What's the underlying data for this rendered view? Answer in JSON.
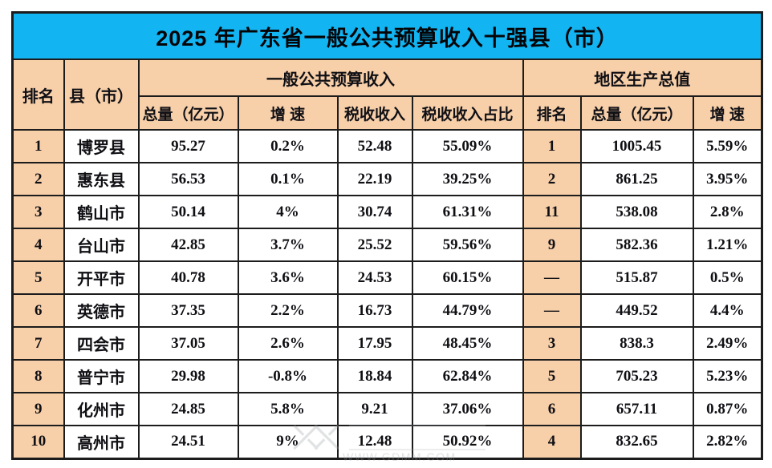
{
  "title": "2025 年广东省一般公共预算收入十强县（市）",
  "header": {
    "rank": "排名",
    "county": "县（市）",
    "group_revenue": "一般公共预算收入",
    "group_gdp": "地区生产总值",
    "revenue_cols": [
      "总量（亿元）",
      "增  速",
      "税收收入",
      "税收收入占比"
    ],
    "gdp_cols": [
      "排名",
      "总量（亿元）",
      "增  速"
    ]
  },
  "rows": [
    [
      "1",
      "博罗县",
      "95.27",
      "0.2%",
      "52.48",
      "55.09%",
      "1",
      "1005.45",
      "5.59%"
    ],
    [
      "2",
      "惠东县",
      "56.53",
      "0.1%",
      "22.19",
      "39.25%",
      "2",
      "861.25",
      "3.95%"
    ],
    [
      "3",
      "鹤山市",
      "50.14",
      "4%",
      "30.74",
      "61.31%",
      "11",
      "538.08",
      "2.8%"
    ],
    [
      "4",
      "台山市",
      "42.85",
      "3.7%",
      "25.52",
      "59.56%",
      "9",
      "582.36",
      "1.21%"
    ],
    [
      "5",
      "开平市",
      "40.78",
      "3.6%",
      "24.53",
      "60.15%",
      "—",
      "515.87",
      "0.5%"
    ],
    [
      "6",
      "英德市",
      "37.35",
      "2.2%",
      "16.73",
      "44.79%",
      "—",
      "449.52",
      "4.4%"
    ],
    [
      "7",
      "四会市",
      "37.05",
      "2.6%",
      "17.95",
      "48.45%",
      "3",
      "838.3",
      "2.49%"
    ],
    [
      "8",
      "普宁市",
      "29.98",
      "-0.8%",
      "18.84",
      "62.84%",
      "5",
      "705.23",
      "5.23%"
    ],
    [
      "9",
      "化州市",
      "24.85",
      "5.8%",
      "9.21",
      "37.06%",
      "6",
      "657.11",
      "0.87%"
    ],
    [
      "10",
      "高州市",
      "24.51",
      "9%",
      "12.48",
      "50.92%",
      "4",
      "832.65",
      "2.82%"
    ]
  ],
  "watermark": {
    "url": "WWW.GDMM.COM"
  },
  "colors": {
    "title_bg": "#12b5f2",
    "header_bg": "#f7cfa9",
    "border": "#1c1c1c",
    "cell_bg": "#ffffff"
  },
  "chart_data": {
    "type": "table",
    "title": "2025 年广东省一般公共预算收入十强县（市）",
    "column_groups": [
      {
        "label": "",
        "columns": [
          "排名",
          "县（市）"
        ]
      },
      {
        "label": "一般公共预算收入",
        "columns": [
          "总量（亿元）",
          "增  速",
          "税收收入",
          "税收收入占比"
        ]
      },
      {
        "label": "地区生产总值",
        "columns": [
          "排名",
          "总量（亿元）",
          "增  速"
        ]
      }
    ],
    "rows": [
      {
        "rank": 1,
        "county": "博罗县",
        "revenue_total": 95.27,
        "revenue_growth": "0.2%",
        "tax_revenue": 52.48,
        "tax_share": "55.09%",
        "gdp_rank": "1",
        "gdp_total": 1005.45,
        "gdp_growth": "5.59%"
      },
      {
        "rank": 2,
        "county": "惠东县",
        "revenue_total": 56.53,
        "revenue_growth": "0.1%",
        "tax_revenue": 22.19,
        "tax_share": "39.25%",
        "gdp_rank": "2",
        "gdp_total": 861.25,
        "gdp_growth": "3.95%"
      },
      {
        "rank": 3,
        "county": "鹤山市",
        "revenue_total": 50.14,
        "revenue_growth": "4%",
        "tax_revenue": 30.74,
        "tax_share": "61.31%",
        "gdp_rank": "11",
        "gdp_total": 538.08,
        "gdp_growth": "2.8%"
      },
      {
        "rank": 4,
        "county": "台山市",
        "revenue_total": 42.85,
        "revenue_growth": "3.7%",
        "tax_revenue": 25.52,
        "tax_share": "59.56%",
        "gdp_rank": "9",
        "gdp_total": 582.36,
        "gdp_growth": "1.21%"
      },
      {
        "rank": 5,
        "county": "开平市",
        "revenue_total": 40.78,
        "revenue_growth": "3.6%",
        "tax_revenue": 24.53,
        "tax_share": "60.15%",
        "gdp_rank": "—",
        "gdp_total": 515.87,
        "gdp_growth": "0.5%"
      },
      {
        "rank": 6,
        "county": "英德市",
        "revenue_total": 37.35,
        "revenue_growth": "2.2%",
        "tax_revenue": 16.73,
        "tax_share": "44.79%",
        "gdp_rank": "—",
        "gdp_total": 449.52,
        "gdp_growth": "4.4%"
      },
      {
        "rank": 7,
        "county": "四会市",
        "revenue_total": 37.05,
        "revenue_growth": "2.6%",
        "tax_revenue": 17.95,
        "tax_share": "48.45%",
        "gdp_rank": "3",
        "gdp_total": 838.3,
        "gdp_growth": "2.49%"
      },
      {
        "rank": 8,
        "county": "普宁市",
        "revenue_total": 29.98,
        "revenue_growth": "-0.8%",
        "tax_revenue": 18.84,
        "tax_share": "62.84%",
        "gdp_rank": "5",
        "gdp_total": 705.23,
        "gdp_growth": "5.23%"
      },
      {
        "rank": 9,
        "county": "化州市",
        "revenue_total": 24.85,
        "revenue_growth": "5.8%",
        "tax_revenue": 9.21,
        "tax_share": "37.06%",
        "gdp_rank": "6",
        "gdp_total": 657.11,
        "gdp_growth": "0.87%"
      },
      {
        "rank": 10,
        "county": "高州市",
        "revenue_total": 24.51,
        "revenue_growth": "9%",
        "tax_revenue": 12.48,
        "tax_share": "50.92%",
        "gdp_rank": "4",
        "gdp_total": 832.65,
        "gdp_growth": "2.82%"
      }
    ]
  }
}
